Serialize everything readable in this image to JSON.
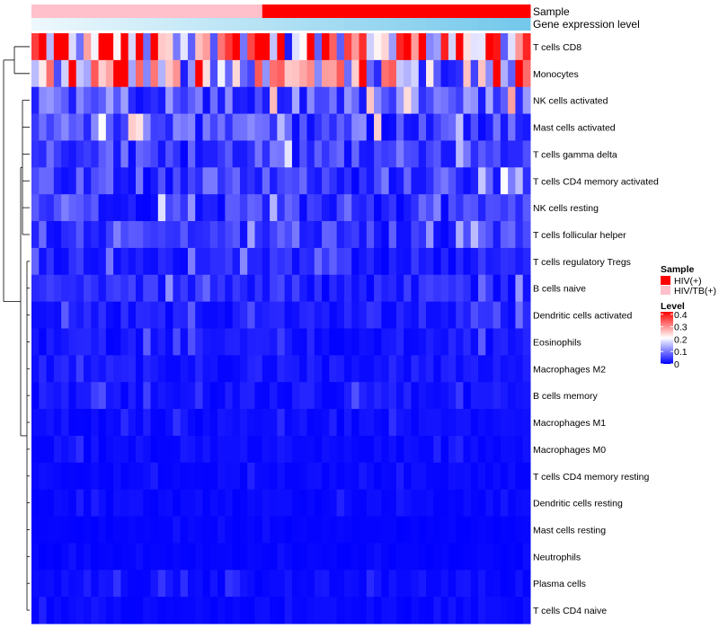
{
  "chart_data": {
    "type": "heatmap",
    "title": "",
    "column_annotations": [
      {
        "name": "Sample"
      },
      {
        "name": "Gene expression level"
      }
    ],
    "legend_sample": {
      "title": "Sample",
      "entries": [
        {
          "label": "HIV(+)",
          "color": "#ff0000"
        },
        {
          "label": "HIV/TB(+)",
          "color": "#ffc0cb"
        }
      ]
    },
    "legend_level": {
      "title": "Level",
      "ticks": [
        "0.4",
        "0.3",
        "0.2",
        "0.1",
        "0"
      ],
      "tick_values": [
        0.4,
        0.3,
        0.2,
        0.1,
        0
      ],
      "colors": [
        "#0000ff",
        "#ffffff",
        "#ff0000"
      ],
      "range": [
        0,
        0.42
      ]
    },
    "sample_group_sequence": [
      2,
      2,
      2,
      2,
      2,
      2,
      2,
      2,
      2,
      2,
      2,
      2,
      2,
      2,
      2,
      2,
      2,
      2,
      2,
      2,
      2,
      2,
      2,
      2,
      2,
      2,
      2,
      2,
      2,
      2,
      2,
      1,
      1,
      1,
      1,
      1,
      1,
      1,
      1,
      1,
      1,
      1,
      1,
      1,
      1,
      1,
      1,
      1,
      1,
      1,
      1,
      1,
      1,
      1,
      1,
      1,
      1,
      1,
      1,
      1,
      1,
      1,
      1,
      1,
      1,
      1,
      1
    ],
    "gene_expression_range": [
      0,
      1
    ],
    "rows": [
      {
        "name": "T cells CD8",
        "mean": 0.3
      },
      {
        "name": "Monocytes",
        "mean": 0.2
      },
      {
        "name": "NK cells activated",
        "mean": 0.08
      },
      {
        "name": "Mast cells activated",
        "mean": 0.07
      },
      {
        "name": "T cells gamma delta",
        "mean": 0.06
      },
      {
        "name": "T cells CD4 memory activated",
        "mean": 0.06
      },
      {
        "name": "NK cells resting",
        "mean": 0.05
      },
      {
        "name": "T cells follicular helper",
        "mean": 0.05
      },
      {
        "name": "T cells regulatory  Tregs",
        "mean": 0.03
      },
      {
        "name": "B cells naive",
        "mean": 0.035
      },
      {
        "name": "Dendritic cells activated",
        "mean": 0.025
      },
      {
        "name": "Eosinophils",
        "mean": 0.02
      },
      {
        "name": "Macrophages M2",
        "mean": 0.02
      },
      {
        "name": "B cells memory",
        "mean": 0.018
      },
      {
        "name": "Macrophages M1",
        "mean": 0.012
      },
      {
        "name": "Macrophages M0",
        "mean": 0.012
      },
      {
        "name": "T cells CD4 memory resting",
        "mean": 0.008
      },
      {
        "name": "Dendritic cells resting",
        "mean": 0.008
      },
      {
        "name": "Mast cells resting",
        "mean": 0.004
      },
      {
        "name": "Neutrophils",
        "mean": 0.004
      },
      {
        "name": "Plasma cells",
        "mean": 0.012
      },
      {
        "name": "T cells CD4 naive",
        "mean": 0.008
      }
    ]
  }
}
